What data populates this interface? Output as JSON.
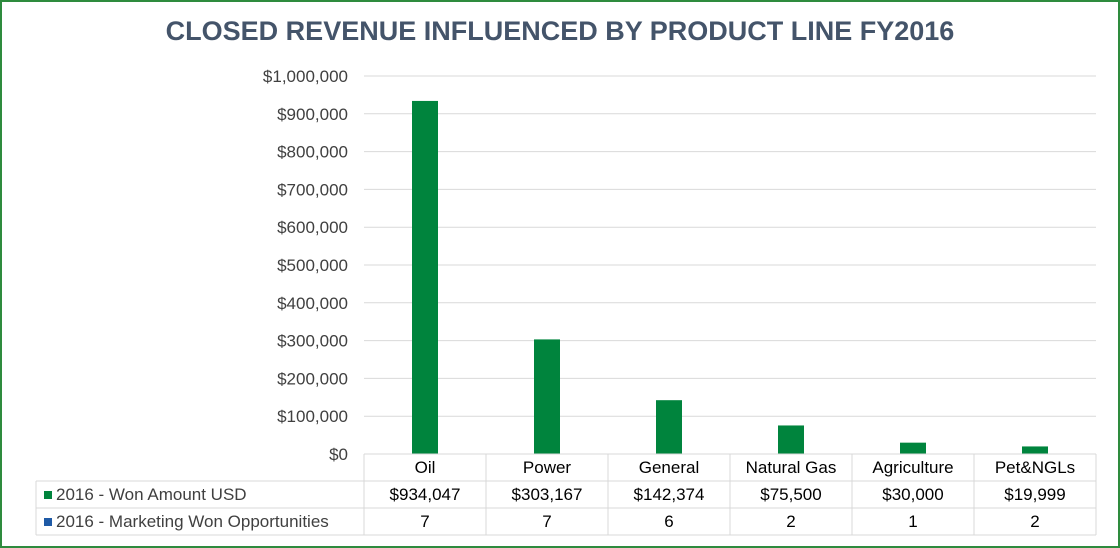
{
  "chart_data": {
    "type": "bar",
    "title": "CLOSED REVENUE INFLUENCED BY PRODUCT LINE FY2016",
    "categories": [
      "Oil",
      "Power",
      "General",
      "Natural Gas",
      "Agriculture",
      "Pet&NGLs"
    ],
    "series": [
      {
        "name": "2016 - Won Amount USD",
        "values": [
          934047,
          303167,
          142374,
          75500,
          30000,
          19999
        ],
        "labels": [
          "$934,047",
          "$303,167",
          "$142,374",
          "$75,500",
          "$30,000",
          "$19,999"
        ],
        "color": "#00843d"
      },
      {
        "name": "2016 - Marketing Won Opportunities",
        "values": [
          7,
          7,
          6,
          2,
          1,
          2
        ],
        "labels": [
          "7",
          "7",
          "6",
          "2",
          "1",
          "2"
        ],
        "color": "#1f5aa6"
      }
    ],
    "ylim": [
      0,
      1000000
    ],
    "yticks": [
      0,
      100000,
      200000,
      300000,
      400000,
      500000,
      600000,
      700000,
      800000,
      900000,
      1000000
    ],
    "ytick_labels": [
      "$0",
      "$100,000",
      "$200,000",
      "$300,000",
      "$400,000",
      "$500,000",
      "$600,000",
      "$700,000",
      "$800,000",
      "$900,000",
      "$1,000,000"
    ],
    "xlabel": "",
    "ylabel": "",
    "grid": true,
    "legend": "data-table-left"
  },
  "colors": {
    "frame": "#2e8b3e",
    "gridline": "#d9d9d9",
    "title": "#44546a"
  }
}
